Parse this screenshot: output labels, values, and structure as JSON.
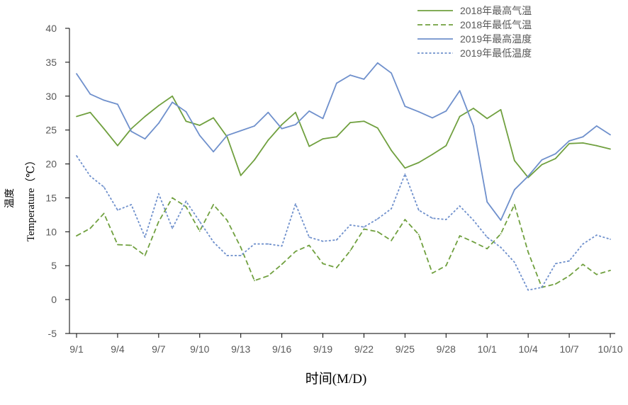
{
  "chart_data": {
    "type": "line",
    "title": "",
    "xlabel": "时间(M/D)",
    "ylabel_cn": "温度",
    "ylabel": "Temperature（℃）",
    "ylim": [
      -5,
      40
    ],
    "yticks": [
      -5,
      0,
      5,
      10,
      15,
      20,
      25,
      30,
      35,
      40
    ],
    "grid": false,
    "legend_position": "top-right",
    "categories": [
      "9/1",
      "9/2",
      "9/3",
      "9/4",
      "9/5",
      "9/6",
      "9/7",
      "9/8",
      "9/9",
      "9/10",
      "9/11",
      "9/12",
      "9/13",
      "9/14",
      "9/15",
      "9/16",
      "9/17",
      "9/18",
      "9/19",
      "9/20",
      "9/21",
      "9/22",
      "9/23",
      "9/24",
      "9/25",
      "9/26",
      "9/27",
      "9/28",
      "9/29",
      "9/30",
      "10/1",
      "10/2",
      "10/3",
      "10/4",
      "10/5",
      "10/6",
      "10/7",
      "10/8",
      "10/9",
      "10/10"
    ],
    "tick_labels": [
      "9/1",
      "9/4",
      "9/7",
      "9/10",
      "9/13",
      "9/16",
      "9/19",
      "9/22",
      "9/25",
      "9/28",
      "10/1",
      "10/4",
      "10/7",
      "10/10"
    ],
    "tick_indices": [
      0,
      3,
      6,
      9,
      12,
      15,
      18,
      21,
      24,
      27,
      30,
      33,
      36,
      39
    ],
    "series": [
      {
        "name": "2018年最高气温",
        "color": "#70a03f",
        "dash": "solid",
        "values": [
          27.0,
          27.6,
          25.2,
          22.7,
          25.2,
          27.0,
          28.6,
          30.0,
          26.3,
          25.7,
          26.8,
          24.0,
          18.3,
          20.6,
          23.5,
          25.8,
          27.6,
          22.6,
          23.7,
          24.0,
          26.1,
          26.3,
          25.3,
          22.0,
          19.4,
          20.2,
          21.4,
          22.7,
          27.0,
          28.2,
          26.7,
          28.0,
          20.5,
          18.0,
          19.9,
          20.8,
          23.0,
          23.1,
          22.7,
          22.2
        ]
      },
      {
        "name": "2018年最低气温",
        "color": "#70a03f",
        "dash": "dashed",
        "values": [
          9.4,
          10.5,
          12.7,
          8.1,
          8.0,
          6.5,
          11.5,
          15.0,
          13.7,
          10.1,
          14.0,
          11.7,
          7.7,
          2.8,
          3.5,
          5.2,
          7.1,
          8.0,
          5.3,
          4.7,
          7.2,
          10.4,
          10.0,
          8.7,
          11.8,
          9.6,
          3.9,
          5.0,
          9.4,
          8.5,
          7.5,
          9.7,
          14.0,
          7.0,
          1.8,
          2.3,
          3.5,
          5.2,
          3.7,
          4.3
        ]
      },
      {
        "name": "2019年最高温度",
        "color": "#6f90cc",
        "dash": "solid",
        "values": [
          33.3,
          30.3,
          29.4,
          28.8,
          24.8,
          23.7,
          26.0,
          29.1,
          27.7,
          24.2,
          21.8,
          24.2,
          24.9,
          25.6,
          27.6,
          25.2,
          25.8,
          27.8,
          26.7,
          31.9,
          33.1,
          32.5,
          34.9,
          33.4,
          28.5,
          27.7,
          26.8,
          27.8,
          30.8,
          25.6,
          14.4,
          11.7,
          16.2,
          18.2,
          20.6,
          21.5,
          23.4,
          24.0,
          25.6,
          24.3
        ]
      },
      {
        "name": "2019年最低温度",
        "color": "#6f90cc",
        "dash": "dotted",
        "values": [
          21.2,
          18.2,
          16.6,
          13.2,
          14.0,
          9.2,
          15.6,
          10.5,
          14.5,
          11.5,
          8.5,
          6.5,
          6.5,
          8.2,
          8.2,
          7.9,
          14.1,
          9.2,
          8.6,
          8.8,
          11.0,
          10.7,
          11.9,
          13.4,
          18.5,
          13.2,
          12.0,
          11.8,
          13.8,
          11.7,
          9.2,
          7.7,
          5.5,
          1.4,
          1.8,
          5.3,
          5.7,
          8.2,
          9.5,
          8.9
        ]
      }
    ]
  }
}
